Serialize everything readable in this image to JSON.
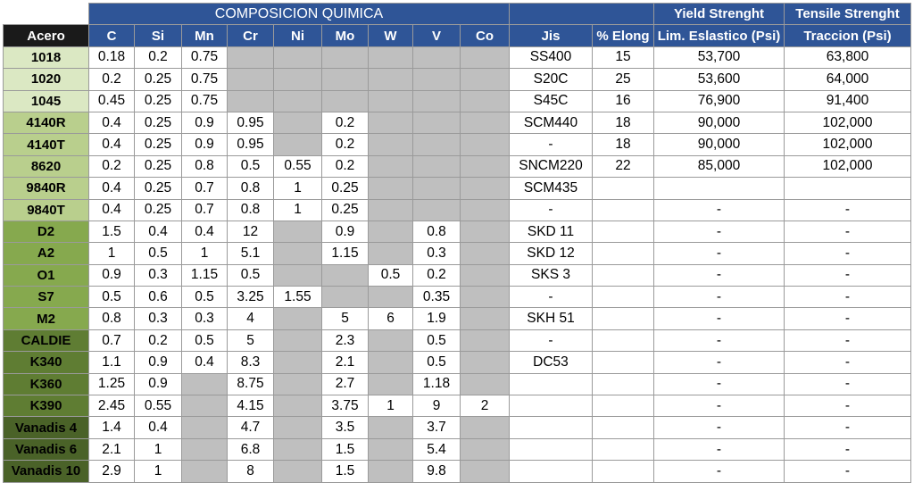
{
  "band_title": "COMPOSICION QUIMICA",
  "yield_title": "Yield Strenght",
  "tensile_title": "Tensile Strenght",
  "headers": [
    "Acero",
    "C",
    "Si",
    "Mn",
    "Cr",
    "Ni",
    "Mo",
    "W",
    "V",
    "Co",
    "Jis",
    "% Elong",
    "Lim. Eslastico (Psi)",
    "Traccion (Psi)"
  ],
  "rows": [
    {
      "acero": "1018",
      "tone": "g1",
      "c": "0.18",
      "si": "0.2",
      "mn": "0.75",
      "cr": "",
      "ni": "",
      "mo": "",
      "w": "",
      "v": "",
      "co": "",
      "jis": "SS400",
      "elong": "15",
      "yield": "53,700",
      "tensile": "63,800"
    },
    {
      "acero": "1020",
      "tone": "g1",
      "c": "0.2",
      "si": "0.25",
      "mn": "0.75",
      "cr": "",
      "ni": "",
      "mo": "",
      "w": "",
      "v": "",
      "co": "",
      "jis": "S20C",
      "elong": "25",
      "yield": "53,600",
      "tensile": "64,000"
    },
    {
      "acero": "1045",
      "tone": "g1",
      "c": "0.45",
      "si": "0.25",
      "mn": "0.75",
      "cr": "",
      "ni": "",
      "mo": "",
      "w": "",
      "v": "",
      "co": "",
      "jis": "S45C",
      "elong": "16",
      "yield": "76,900",
      "tensile": "91,400"
    },
    {
      "acero": "4140R",
      "tone": "g2",
      "c": "0.4",
      "si": "0.25",
      "mn": "0.9",
      "cr": "0.95",
      "ni": "",
      "mo": "0.2",
      "w": "",
      "v": "",
      "co": "",
      "jis": "SCM440",
      "elong": "18",
      "yield": "90,000",
      "tensile": "102,000"
    },
    {
      "acero": "4140T",
      "tone": "g2",
      "c": "0.4",
      "si": "0.25",
      "mn": "0.9",
      "cr": "0.95",
      "ni": "",
      "mo": "0.2",
      "w": "",
      "v": "",
      "co": "",
      "jis": "-",
      "elong": "18",
      "yield": "90,000",
      "tensile": "102,000"
    },
    {
      "acero": "8620",
      "tone": "g2",
      "c": "0.2",
      "si": "0.25",
      "mn": "0.8",
      "cr": "0.5",
      "ni": "0.55",
      "mo": "0.2",
      "w": "",
      "v": "",
      "co": "",
      "jis": "SNCM220",
      "elong": "22",
      "yield": "85,000",
      "tensile": "102,000"
    },
    {
      "acero": "9840R",
      "tone": "g2",
      "c": "0.4",
      "si": "0.25",
      "mn": "0.7",
      "cr": "0.8",
      "ni": "1",
      "mo": "0.25",
      "w": "",
      "v": "",
      "co": "",
      "jis": "SCM435",
      "elong": "",
      "yield": "",
      "tensile": ""
    },
    {
      "acero": "9840T",
      "tone": "g2",
      "c": "0.4",
      "si": "0.25",
      "mn": "0.7",
      "cr": "0.8",
      "ni": "1",
      "mo": "0.25",
      "w": "",
      "v": "",
      "co": "",
      "jis": "-",
      "elong": "",
      "yield": "-",
      "tensile": "-"
    },
    {
      "acero": "D2",
      "tone": "g3",
      "c": "1.5",
      "si": "0.4",
      "mn": "0.4",
      "cr": "12",
      "ni": "",
      "mo": "0.9",
      "w": "",
      "v": "0.8",
      "co": "",
      "jis": "SKD 11",
      "elong": "",
      "yield": "-",
      "tensile": "-"
    },
    {
      "acero": "A2",
      "tone": "g3",
      "c": "1",
      "si": "0.5",
      "mn": "1",
      "cr": "5.1",
      "ni": "",
      "mo": "1.15",
      "w": "",
      "v": "0.3",
      "co": "",
      "jis": "SKD 12",
      "elong": "",
      "yield": "-",
      "tensile": "-"
    },
    {
      "acero": "O1",
      "tone": "g3",
      "c": "0.9",
      "si": "0.3",
      "mn": "1.15",
      "cr": "0.5",
      "ni": "",
      "mo": "",
      "w": "0.5",
      "v": "0.2",
      "co": "",
      "jis": "SKS 3",
      "elong": "",
      "yield": "-",
      "tensile": "-"
    },
    {
      "acero": "S7",
      "tone": "g3",
      "c": "0.5",
      "si": "0.6",
      "mn": "0.5",
      "cr": "3.25",
      "ni": "1.55",
      "mo": "",
      "w": "",
      "v": "0.35",
      "co": "",
      "jis": "-",
      "elong": "",
      "yield": "-",
      "tensile": "-"
    },
    {
      "acero": "M2",
      "tone": "g3",
      "c": "0.8",
      "si": "0.3",
      "mn": "0.3",
      "cr": "4",
      "ni": "",
      "mo": "5",
      "w": "6",
      "v": "1.9",
      "co": "",
      "jis": "SKH 51",
      "elong": "",
      "yield": "-",
      "tensile": "-"
    },
    {
      "acero": "CALDIE",
      "tone": "g4",
      "c": "0.7",
      "si": "0.2",
      "mn": "0.5",
      "cr": "5",
      "ni": "",
      "mo": "2.3",
      "w": "",
      "v": "0.5",
      "co": "",
      "jis": "-",
      "elong": "",
      "yield": "-",
      "tensile": "-"
    },
    {
      "acero": "K340",
      "tone": "g4",
      "c": "1.1",
      "si": "0.9",
      "mn": "0.4",
      "cr": "8.3",
      "ni": "",
      "mo": "2.1",
      "w": "",
      "v": "0.5",
      "co": "",
      "jis": "DC53",
      "elong": "",
      "yield": "-",
      "tensile": "-"
    },
    {
      "acero": "K360",
      "tone": "g4",
      "c": "1.25",
      "si": "0.9",
      "mn": "",
      "cr": "8.75",
      "ni": "",
      "mo": "2.7",
      "w": "",
      "v": "1.18",
      "co": "",
      "jis": "",
      "elong": "",
      "yield": "-",
      "tensile": "-"
    },
    {
      "acero": "K390",
      "tone": "g4",
      "c": "2.45",
      "si": "0.55",
      "mn": "",
      "cr": "4.15",
      "ni": "",
      "mo": "3.75",
      "w": "1",
      "v": "9",
      "co": "2",
      "jis": "",
      "elong": "",
      "yield": "-",
      "tensile": "-"
    },
    {
      "acero": "Vanadis 4",
      "tone": "g5",
      "c": "1.4",
      "si": "0.4",
      "mn": "",
      "cr": "4.7",
      "ni": "",
      "mo": "3.5",
      "w": "",
      "v": "3.7",
      "co": "",
      "jis": "",
      "elong": "",
      "yield": "-",
      "tensile": "-"
    },
    {
      "acero": "Vanadis 6",
      "tone": "g5",
      "c": "2.1",
      "si": "1",
      "mn": "",
      "cr": "6.8",
      "ni": "",
      "mo": "1.5",
      "w": "",
      "v": "5.4",
      "co": "",
      "jis": "",
      "elong": "",
      "yield": "-",
      "tensile": "-"
    },
    {
      "acero": "Vanadis 10",
      "tone": "g5",
      "c": "2.9",
      "si": "1",
      "mn": "",
      "cr": "8",
      "ni": "",
      "mo": "1.5",
      "w": "",
      "v": "9.8",
      "co": "",
      "jis": "",
      "elong": "",
      "yield": "-",
      "tensile": "-"
    }
  ]
}
